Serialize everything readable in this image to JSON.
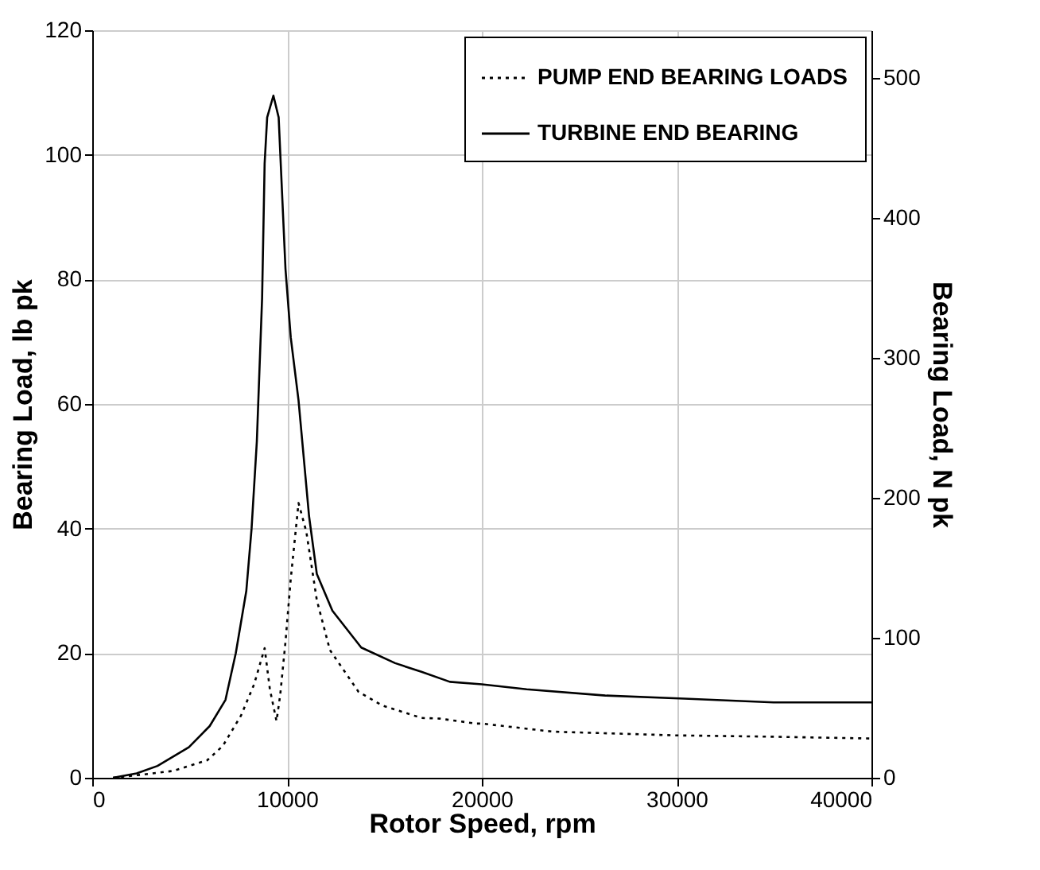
{
  "chart_data": {
    "type": "line",
    "xlabel": "Rotor Speed, rpm",
    "ylabel": "Bearing Load, lb pk",
    "y2label": "Bearing Load, N pk",
    "xlim": [
      0,
      40000
    ],
    "xticks": [
      0,
      10000,
      20000,
      30000,
      40000
    ],
    "ylim": [
      0,
      120
    ],
    "yticks": [
      0,
      20,
      40,
      60,
      80,
      100,
      120
    ],
    "y2lim": [
      0,
      533.8
    ],
    "y2ticks": [
      0,
      100,
      200,
      300,
      400,
      500
    ],
    "grid": true,
    "legend": "top right",
    "marker": "none",
    "series": [
      {
        "name": "PUMP END BEARING LOADS",
        "color": "#000000",
        "line_style": "dotted",
        "x": [
          1070,
          2550,
          4160,
          5900,
          6700,
          7640,
          8310,
          8850,
          9120,
          9460,
          9650,
          9920,
          10190,
          10590,
          10990,
          11530,
          12200,
          13670,
          14880,
          16900,
          17830,
          19700,
          20000,
          23640,
          30000,
          34710,
          40000
        ],
        "values": [
          0,
          0.5,
          1.1,
          2.8,
          5.1,
          10,
          15,
          20.8,
          14.2,
          9.1,
          13.3,
          21.8,
          31.9,
          44.1,
          39.5,
          28.5,
          20.5,
          13.8,
          11.6,
          9.6,
          9.5,
          8.7,
          8.7,
          7.4,
          6.8,
          6.6,
          6.3
        ]
      },
      {
        "name": "TURBINE END BEARING",
        "color": "#000000",
        "line_style": "solid",
        "x": [
          1070,
          2280,
          3350,
          4960,
          6030,
          6840,
          7370,
          7910,
          8180,
          8450,
          8720,
          8850,
          8980,
          9300,
          9570,
          9920,
          10190,
          10590,
          11130,
          11530,
          12330,
          13810,
          15550,
          16900,
          18360,
          20000,
          22300,
          26340,
          30390,
          34980,
          40000
        ],
        "values": [
          0,
          0.7,
          1.9,
          4.9,
          8.3,
          12.5,
          20,
          30,
          40,
          54,
          77,
          98.6,
          106,
          109.5,
          106,
          81.7,
          70.7,
          60.6,
          42,
          32.7,
          26.8,
          20.9,
          18.4,
          17.0,
          15.4,
          15.0,
          14.2,
          13.2,
          12.7,
          12.1,
          12.1
        ]
      }
    ]
  }
}
